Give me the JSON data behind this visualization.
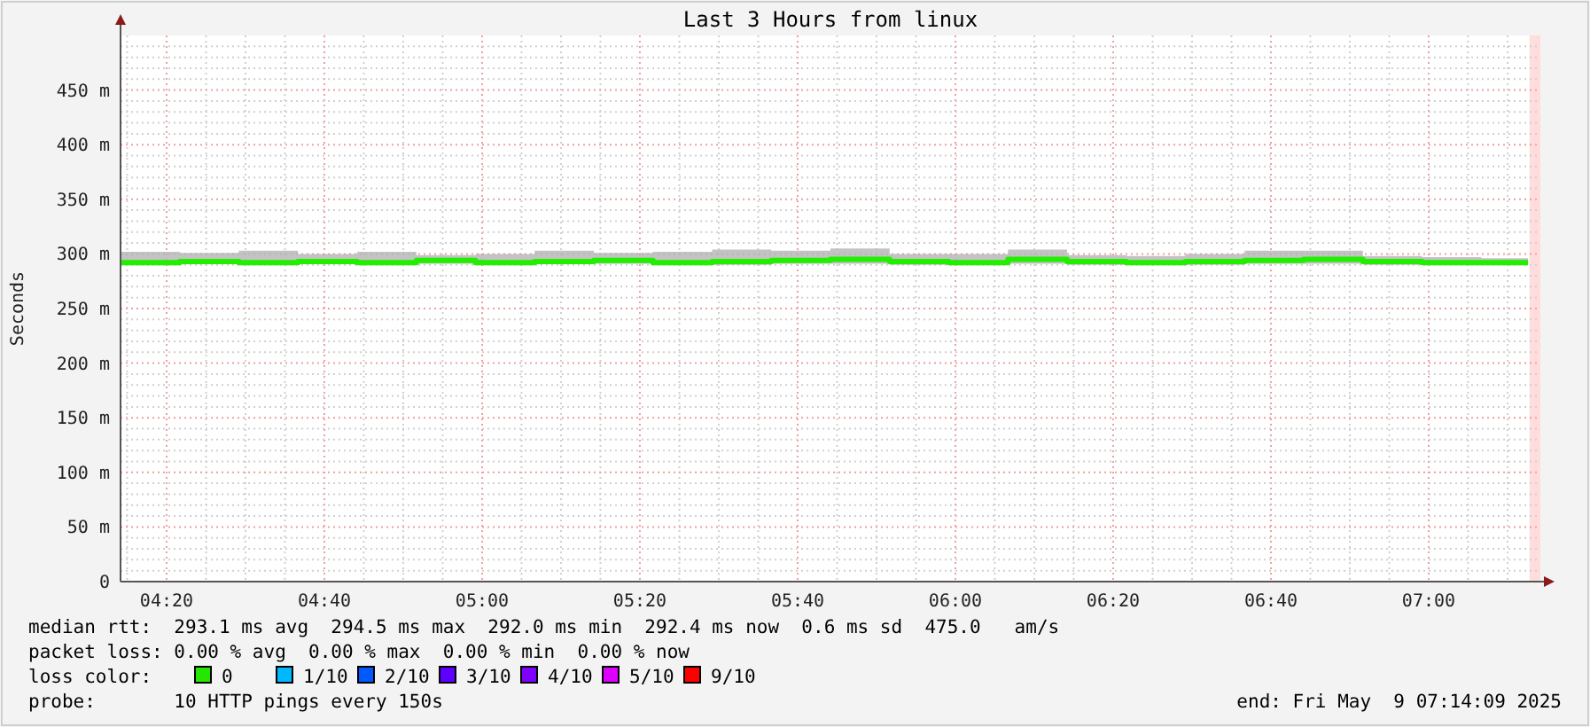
{
  "chart_data": {
    "type": "step",
    "title": "Last 3 Hours from linux",
    "ylabel": "Seconds",
    "x": [
      4.236,
      4.361,
      4.486,
      4.611,
      4.736,
      4.861,
      4.986,
      5.111,
      5.236,
      5.361,
      5.486,
      5.611,
      5.736,
      5.861,
      5.986,
      6.111,
      6.236,
      6.361,
      6.486,
      6.611,
      6.736,
      6.861,
      6.986,
      7.111,
      7.21
    ],
    "series": [
      {
        "color": "#22ee00",
        "values": [
          292,
          293,
          292,
          293,
          292,
          294,
          292,
          293,
          294,
          292,
          293,
          294,
          295,
          293,
          292,
          295,
          293,
          292,
          293,
          294,
          295,
          293,
          292,
          292,
          292
        ],
        "lower": [
          290,
          291,
          290,
          291,
          290,
          291,
          290,
          291,
          291,
          290,
          290,
          291,
          291,
          290,
          290,
          291,
          290,
          290,
          290,
          291,
          291,
          290,
          290,
          290,
          290
        ],
        "upper": [
          302,
          301,
          303,
          300,
          302,
          299,
          300,
          303,
          301,
          302,
          304,
          303,
          305,
          300,
          300,
          304,
          299,
          298,
          300,
          303,
          303,
          298,
          297,
          296,
          296
        ]
      }
    ],
    "xlim": [
      4.236,
      7.236
    ],
    "ylim": [
      0,
      500
    ],
    "xticks": [
      {
        "value": 4.25,
        "label": null
      },
      {
        "value": 4.3333,
        "label": "04:20"
      },
      {
        "value": 4.4167,
        "label": null
      },
      {
        "value": 4.5,
        "label": null
      },
      {
        "value": 4.5833,
        "label": null
      },
      {
        "value": 4.6667,
        "label": "04:40"
      },
      {
        "value": 4.75,
        "label": null
      },
      {
        "value": 4.8333,
        "label": null
      },
      {
        "value": 4.9167,
        "label": null
      },
      {
        "value": 5,
        "label": "05:00"
      },
      {
        "value": 5.0833,
        "label": null
      },
      {
        "value": 5.1667,
        "label": null
      },
      {
        "value": 5.25,
        "label": null
      },
      {
        "value": 5.3333,
        "label": "05:20"
      },
      {
        "value": 5.4167,
        "label": null
      },
      {
        "value": 5.5,
        "label": null
      },
      {
        "value": 5.5833,
        "label": null
      },
      {
        "value": 5.6667,
        "label": "05:40"
      },
      {
        "value": 5.75,
        "label": null
      },
      {
        "value": 5.8333,
        "label": null
      },
      {
        "value": 5.9167,
        "label": null
      },
      {
        "value": 6,
        "label": "06:00"
      },
      {
        "value": 6.0833,
        "label": null
      },
      {
        "value": 6.1667,
        "label": null
      },
      {
        "value": 6.25,
        "label": null
      },
      {
        "value": 6.3333,
        "label": "06:20"
      },
      {
        "value": 6.4167,
        "label": null
      },
      {
        "value": 6.5,
        "label": null
      },
      {
        "value": 6.5833,
        "label": null
      },
      {
        "value": 6.6667,
        "label": "06:40"
      },
      {
        "value": 6.75,
        "label": null
      },
      {
        "value": 6.8333,
        "label": null
      },
      {
        "value": 6.9167,
        "label": null
      },
      {
        "value": 7,
        "label": "07:00"
      },
      {
        "value": 7.0833,
        "label": null
      },
      {
        "value": 7.1667,
        "label": null
      }
    ],
    "yticks": [
      0,
      {
        "value": 10,
        "label": null
      },
      {
        "value": 20,
        "label": null
      },
      {
        "value": 30,
        "label": null
      },
      {
        "value": 40,
        "label": null
      },
      {
        "value": 50,
        "label": "50 m"
      },
      {
        "value": 60,
        "label": null
      },
      {
        "value": 70,
        "label": null
      },
      {
        "value": 80,
        "label": null
      },
      {
        "value": 90,
        "label": null
      },
      {
        "value": 100,
        "label": "100 m"
      },
      {
        "value": 110,
        "label": null
      },
      {
        "value": 120,
        "label": null
      },
      {
        "value": 130,
        "label": null
      },
      {
        "value": 140,
        "label": null
      },
      {
        "value": 150,
        "label": "150 m"
      },
      {
        "value": 160,
        "label": null
      },
      {
        "value": 170,
        "label": null
      },
      {
        "value": 180,
        "label": null
      },
      {
        "value": 190,
        "label": null
      },
      {
        "value": 200,
        "label": "200 m"
      },
      {
        "value": 210,
        "label": null
      },
      {
        "value": 220,
        "label": null
      },
      {
        "value": 230,
        "label": null
      },
      {
        "value": 240,
        "label": null
      },
      {
        "value": 250,
        "label": "250 m"
      },
      {
        "value": 260,
        "label": null
      },
      {
        "value": 270,
        "label": null
      },
      {
        "value": 280,
        "label": null
      },
      {
        "value": 290,
        "label": null
      },
      {
        "value": 300,
        "label": "300 m"
      },
      {
        "value": 310,
        "label": null
      },
      {
        "value": 320,
        "label": null
      },
      {
        "value": 330,
        "label": null
      },
      {
        "value": 340,
        "label": null
      },
      {
        "value": 350,
        "label": "350 m"
      },
      {
        "value": 360,
        "label": null
      },
      {
        "value": 370,
        "label": null
      },
      {
        "value": 380,
        "label": null
      },
      {
        "value": 390,
        "label": null
      },
      {
        "value": 400,
        "label": "400 m"
      },
      {
        "value": 410,
        "label": null
      },
      {
        "value": 420,
        "label": null
      },
      {
        "value": 430,
        "label": null
      },
      {
        "value": 440,
        "label": null
      },
      {
        "value": 450,
        "label": "450 m"
      },
      {
        "value": 460,
        "label": null
      },
      {
        "value": 470,
        "label": null
      },
      {
        "value": 480,
        "label": null
      },
      {
        "value": 490,
        "label": null
      }
    ],
    "grid": true,
    "marker": "none",
    "line_style": "solid",
    "bands": [
      {
        "axis": "x",
        "from": 7.213,
        "to": 7.236,
        "color": "#ffdddd"
      }
    ],
    "annotations": [
      "median rtt:  293.1 ms avg  294.5 ms max  292.0 ms min  292.4 ms now  0.6 ms sd  475.0   am/s",
      "packet loss: 0.00 % avg  0.00 % max  0.00 % min  0.00 % now",
      "loss color:",
      "0",
      "1/10",
      "2/10",
      "3/10",
      "4/10",
      "5/10",
      "9/10",
      "probe:       10 HTTP pings every 150s",
      "end: Fri May  9 07:14:09 2025"
    ]
  }
}
